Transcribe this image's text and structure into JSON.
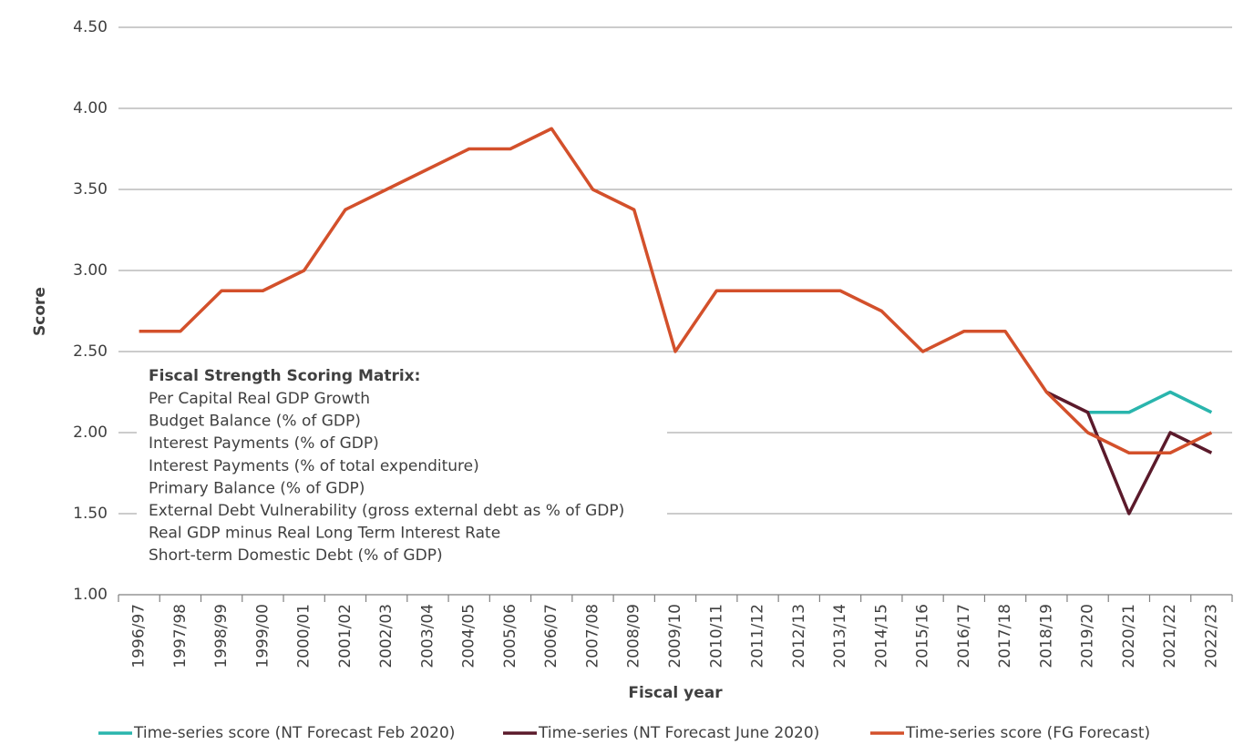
{
  "chart_data": {
    "type": "line",
    "y_label": "Score",
    "x_label": "Fiscal year",
    "categories": [
      "1996/97",
      "1997/98",
      "1998/99",
      "1999/00",
      "2000/01",
      "2001/02",
      "2002/03",
      "2003/04",
      "2004/05",
      "2005/06",
      "2006/07",
      "2007/08",
      "2008/09",
      "2009/10",
      "2010/11",
      "2011/12",
      "2012/13",
      "2013/14",
      "2014/15",
      "2015/16",
      "2016/17",
      "2017/18",
      "2018/19",
      "2019/20",
      "2020/21",
      "2021/22",
      "2022/23"
    ],
    "series": [
      {
        "name": "Time-series score (NT Forecast Feb 2020)",
        "color": "#2ab5ad",
        "values": [
          null,
          null,
          null,
          null,
          null,
          null,
          null,
          null,
          null,
          null,
          null,
          null,
          null,
          null,
          null,
          null,
          null,
          null,
          null,
          null,
          null,
          null,
          null,
          2.125,
          2.125,
          2.25,
          2.125
        ]
      },
      {
        "name": "Time-series (NT Forecast June 2020)",
        "color": "#5b1a2b",
        "values": [
          null,
          null,
          null,
          null,
          null,
          null,
          null,
          null,
          null,
          null,
          null,
          null,
          null,
          null,
          null,
          null,
          null,
          null,
          null,
          null,
          null,
          null,
          2.25,
          2.125,
          1.5,
          2.0,
          1.875
        ]
      },
      {
        "name": "Time-series score (FG Forecast)",
        "color": "#d3502b",
        "values": [
          2.625,
          2.625,
          2.875,
          2.875,
          3.0,
          3.375,
          3.5,
          3.625,
          3.75,
          3.75,
          3.875,
          3.5,
          3.375,
          2.5,
          2.875,
          2.875,
          2.875,
          2.875,
          2.75,
          2.5,
          2.625,
          2.625,
          2.25,
          2.0,
          1.875,
          1.875,
          2.0
        ]
      }
    ],
    "ylim": [
      1.0,
      4.5
    ],
    "yticks": [
      {
        "value": 1.0,
        "label": "1.00"
      },
      {
        "value": 1.5,
        "label": "1.50"
      },
      {
        "value": 2.0,
        "label": "2.00"
      },
      {
        "value": 2.5,
        "label": "2.50"
      },
      {
        "value": 3.0,
        "label": "3.00"
      },
      {
        "value": 3.5,
        "label": "3.50"
      },
      {
        "value": 4.0,
        "label": "4.00"
      },
      {
        "value": 4.5,
        "label": "4.50"
      }
    ],
    "grid": true,
    "legend": "bottom",
    "annotation": {
      "title": "Fiscal Strength Scoring Matrix:",
      "lines": [
        "Per Capital Real GDP Growth",
        "Budget Balance (% of GDP)",
        "Interest Payments (% of GDP)",
        "Interest Payments (% of total expenditure)",
        "Primary Balance (% of GDP)",
        "External Debt Vulnerability (gross external debt as % of GDP)",
        "Real GDP minus Real Long Term Interest Rate",
        "Short-term Domestic Debt (% of GDP)"
      ]
    }
  }
}
